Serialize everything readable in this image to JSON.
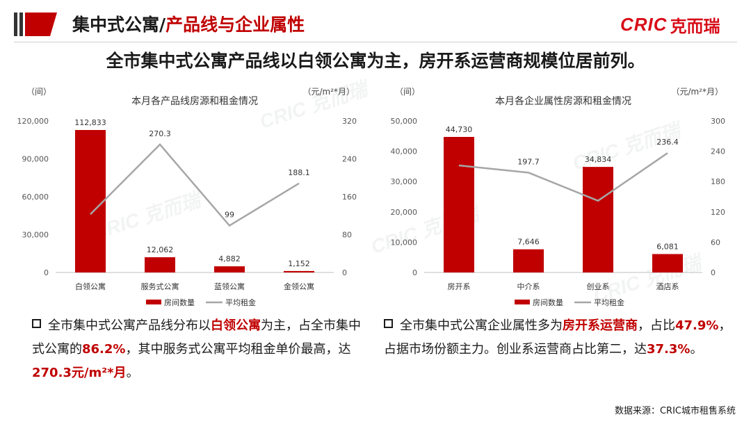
{
  "header": {
    "title_prefix": "集中式公寓/",
    "title_red": "产品线与企业属性",
    "logo_latin": "CRIC",
    "logo_cn": "克而瑞"
  },
  "subtitle": "全市集中式公寓产品线以白领公寓为主，房开系运营商规模位居前列。",
  "colors": {
    "accent": "#c00000",
    "bar": "#c00000",
    "line": "#a6a6a6",
    "text": "#1a1a1a"
  },
  "chart_data": [
    {
      "type": "bar",
      "title": "本月各产品线房源和租金情况",
      "left_unit": "（间）",
      "right_unit": "（元/m²*月）",
      "categories": [
        "白领公寓",
        "服务式公寓",
        "蓝领公寓",
        "金领公寓"
      ],
      "series": [
        {
          "name": "房间数量",
          "type": "bar",
          "axis": "left",
          "values": [
            112833,
            12062,
            4882,
            1152
          ],
          "labels": [
            "112,833",
            "12,062",
            "4,882",
            "1,152"
          ]
        },
        {
          "name": "平均租金",
          "type": "line",
          "axis": "right",
          "values": [
            123,
            270.3,
            99,
            188.1
          ],
          "labels": [
            "",
            "270.3",
            "99",
            "188.1"
          ]
        }
      ],
      "y_left": {
        "min": 0,
        "max": 120000,
        "ticks": [
          "0",
          "30,000",
          "60,000",
          "90,000",
          "120,000"
        ]
      },
      "y_right": {
        "min": 0,
        "max": 320,
        "ticks": [
          "0",
          "80",
          "160",
          "240",
          "320"
        ]
      },
      "legend": "bottom"
    },
    {
      "type": "bar",
      "title": "本月各企业属性房源和租金情况",
      "left_unit": "（间）",
      "right_unit": "（元/m²*月）",
      "categories": [
        "房开系",
        "中介系",
        "创业系",
        "酒店系"
      ],
      "series": [
        {
          "name": "房间数量",
          "type": "bar",
          "axis": "left",
          "values": [
            44730,
            7646,
            34834,
            6081
          ],
          "labels": [
            "44,730",
            "7,646",
            "34,834",
            "6,081"
          ]
        },
        {
          "name": "平均租金",
          "type": "line",
          "axis": "right",
          "values": [
            212,
            197.7,
            142,
            236.4
          ],
          "labels": [
            "",
            "197.7",
            "",
            "236.4"
          ]
        }
      ],
      "y_left": {
        "min": 0,
        "max": 50000,
        "ticks": [
          "0",
          "10,000",
          "20,000",
          "30,000",
          "40,000",
          "50,000"
        ]
      },
      "y_right": {
        "min": 0,
        "max": 300,
        "ticks": [
          "0",
          "60",
          "120",
          "180",
          "240",
          "300"
        ]
      },
      "legend": "bottom"
    }
  ],
  "bullets": {
    "left": [
      "全市集中式公寓产品线分布以",
      "白领公寓",
      "为主，占全市集中式公寓的",
      "86.2%",
      "，其中服务式公寓平均租金单价最高，达",
      "270.3元/m²*月",
      "。"
    ],
    "right": [
      "全市集中式公寓企业属性多为",
      "房开系运营商",
      "，占比",
      "47.9%",
      "，占据市场份额主力。创业系运营商占比第二，达",
      "37.3%",
      "。"
    ]
  },
  "source": "数据来源：CRIC城市租售系统"
}
